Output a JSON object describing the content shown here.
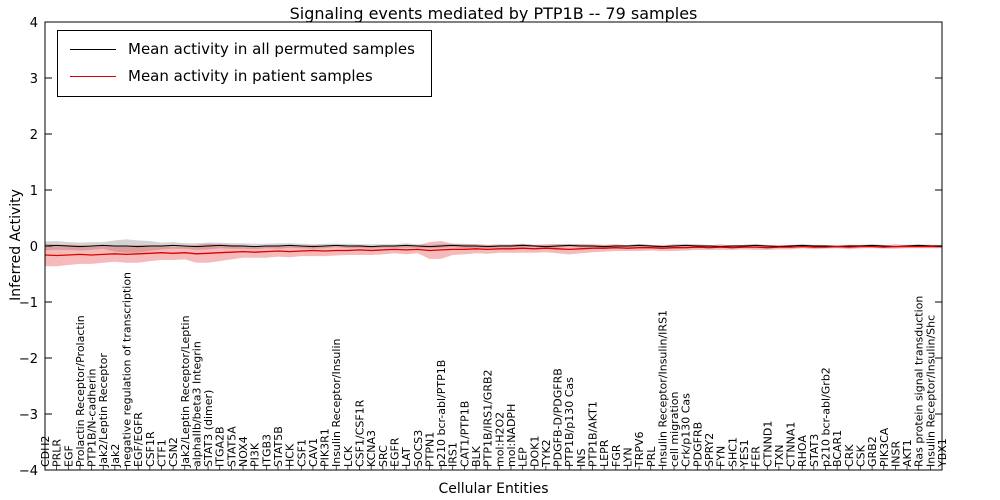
{
  "chart_data": {
    "type": "line",
    "title": "Signaling events mediated by PTP1B -- 79 samples",
    "xlabel": "Cellular Entities",
    "ylabel": "Inferred Activity",
    "ylim": [
      -4,
      4
    ],
    "yticks": [
      -4,
      -3,
      -2,
      -1,
      0,
      1,
      2,
      3,
      4
    ],
    "grid": false,
    "legend_position": "upper left",
    "categories": [
      "CDH2",
      "PRLR",
      "EGF",
      "Prolactin Receptor/Prolactin",
      "PTP1B/N-cadherin",
      "Jak2/Leptin Receptor",
      "Jak2",
      "negative regulation of transcription",
      "EGF/EGFR",
      "CSF1R",
      "CTF1",
      "CSN2",
      "Jak2/Leptin Receptor/Leptin",
      "alphaIIb/beta3 Integrin",
      "STAT3 (dimer)",
      "ITGA2B",
      "STAT5A",
      "NOX4",
      "PI3K",
      "ITGB3",
      "STAT5B",
      "HCK",
      "CSF1",
      "CAV1",
      "PIK3R1",
      "Insulin Receptor/Insulin",
      "LCK",
      "CSF1/CSF1R",
      "KCNA3",
      "SRC",
      "EGFR",
      "LAT",
      "SOCS3",
      "PTPN1",
      "p210 bcr-abl/PTP1B",
      "IRS1",
      "CAT1/PTP1B",
      "BLK",
      "PTP1B/IRS1/GRB2",
      "mol:H2O2",
      "mol:NADPH",
      "LEP",
      "DOK1",
      "TYK2",
      "PDGFB-D/PDGFRB",
      "PTP1B/p130 Cas",
      "INS",
      "PTP1B/AKT1",
      "LEPR",
      "FGR",
      "LYN",
      "TRPV6",
      "PRL",
      "Insulin Receptor/Insulin/IRS1",
      "cell migration",
      "Crk/p130 Cas",
      "PDGFRB",
      "SPRY2",
      "FYN",
      "SHC1",
      "YES1",
      "FER",
      "CTNND1",
      "TXN",
      "CTNNA1",
      "RHOA",
      "STAT3",
      "p210 bcr-abl/Grb2",
      "BCAR1",
      "CRK",
      "CSK",
      "GRB2",
      "PIK3CA",
      "INSR",
      "AKT1",
      "Ras protein signal transduction",
      "Insulin Receptor/Insulin/Shc",
      "YBX1"
    ],
    "series": [
      {
        "name": "Mean activity in all permuted samples",
        "color": "#000000",
        "band_color": "#8c8c8c",
        "band_opacity": 0.38,
        "values": [
          0.0,
          0.01,
          0.0,
          -0.01,
          0.0,
          0.01,
          0.0,
          0.0,
          -0.01,
          0.0,
          0.0,
          0.01,
          0.0,
          -0.01,
          0.0,
          0.01,
          0.0,
          0.0,
          -0.01,
          0.0,
          0.0,
          0.01,
          0.0,
          -0.01,
          0.0,
          0.01,
          0.0,
          0.0,
          -0.01,
          0.0,
          0.0,
          0.01,
          0.0,
          -0.01,
          0.0,
          0.01,
          0.0,
          0.0,
          -0.01,
          0.0,
          0.0,
          0.01,
          0.0,
          -0.01,
          0.0,
          0.01,
          0.0,
          0.0,
          -0.01,
          0.0,
          0.0,
          0.01,
          0.0,
          -0.01,
          0.0,
          0.01,
          0.0,
          0.0,
          -0.01,
          0.0,
          0.0,
          0.01,
          0.0,
          -0.01,
          0.0,
          0.01,
          0.0,
          0.0,
          -0.01,
          0.0,
          0.0,
          0.01,
          0.0,
          -0.01,
          0.0,
          0.01,
          0.0,
          0.0
        ],
        "std": [
          0.08,
          0.08,
          0.07,
          0.07,
          0.07,
          0.06,
          0.1,
          0.12,
          0.11,
          0.09,
          0.06,
          0.06,
          0.05,
          0.06,
          0.06,
          0.05,
          0.05,
          0.05,
          0.05,
          0.04,
          0.05,
          0.04,
          0.04,
          0.04,
          0.04,
          0.03,
          0.04,
          0.03,
          0.04,
          0.03,
          0.03,
          0.04,
          0.03,
          0.03,
          0.03,
          0.03,
          0.04,
          0.03,
          0.03,
          0.03,
          0.03,
          0.03,
          0.02,
          0.03,
          0.03,
          0.02,
          0.03,
          0.02,
          0.03,
          0.02,
          0.02,
          0.03,
          0.02,
          0.02,
          0.02,
          0.03,
          0.02,
          0.02,
          0.02,
          0.02,
          0.02,
          0.02,
          0.02,
          0.02,
          0.02,
          0.02,
          0.02,
          0.02,
          0.02,
          0.02,
          0.02,
          0.02,
          0.02,
          0.02,
          0.02,
          0.02,
          0.02,
          0.02
        ]
      },
      {
        "name": "Mean activity in patient samples",
        "color": "#dd0000",
        "band_color": "#e43a3a",
        "band_opacity": 0.35,
        "values": [
          -0.16,
          -0.17,
          -0.16,
          -0.15,
          -0.16,
          -0.15,
          -0.14,
          -0.15,
          -0.14,
          -0.13,
          -0.12,
          -0.13,
          -0.12,
          -0.14,
          -0.13,
          -0.12,
          -0.11,
          -0.1,
          -0.11,
          -0.1,
          -0.09,
          -0.1,
          -0.09,
          -0.08,
          -0.09,
          -0.08,
          -0.08,
          -0.07,
          -0.08,
          -0.07,
          -0.06,
          -0.07,
          -0.06,
          -0.08,
          -0.07,
          -0.06,
          -0.06,
          -0.05,
          -0.06,
          -0.05,
          -0.05,
          -0.04,
          -0.05,
          -0.04,
          -0.05,
          -0.06,
          -0.05,
          -0.04,
          -0.04,
          -0.03,
          -0.04,
          -0.03,
          -0.03,
          -0.04,
          -0.03,
          -0.03,
          -0.02,
          -0.03,
          -0.02,
          -0.03,
          -0.02,
          -0.02,
          -0.03,
          -0.02,
          -0.02,
          -0.01,
          -0.02,
          -0.02,
          -0.01,
          -0.02,
          -0.01,
          -0.01,
          -0.02,
          -0.01,
          -0.01,
          -0.01,
          -0.01,
          -0.01
        ],
        "std": [
          0.2,
          0.19,
          0.18,
          0.17,
          0.16,
          0.15,
          0.14,
          0.15,
          0.16,
          0.14,
          0.13,
          0.12,
          0.12,
          0.16,
          0.17,
          0.15,
          0.13,
          0.11,
          0.1,
          0.11,
          0.1,
          0.1,
          0.09,
          0.1,
          0.09,
          0.09,
          0.08,
          0.09,
          0.08,
          0.08,
          0.07,
          0.08,
          0.07,
          0.15,
          0.16,
          0.1,
          0.09,
          0.08,
          0.08,
          0.07,
          0.07,
          0.08,
          0.07,
          0.07,
          0.08,
          0.09,
          0.08,
          0.07,
          0.06,
          0.06,
          0.05,
          0.06,
          0.05,
          0.05,
          0.06,
          0.05,
          0.05,
          0.04,
          0.05,
          0.04,
          0.04,
          0.05,
          0.04,
          0.04,
          0.04,
          0.03,
          0.04,
          0.03,
          0.03,
          0.04,
          0.03,
          0.03,
          0.03,
          0.04,
          0.03,
          0.03,
          0.03,
          0.03
        ]
      }
    ]
  },
  "axes": {
    "ytick_labels": [
      "−4",
      "−3",
      "−2",
      "−1",
      "0",
      "1",
      "2",
      "3",
      "4"
    ],
    "axis_color": "#000000",
    "tick_label_color": "#000000"
  }
}
